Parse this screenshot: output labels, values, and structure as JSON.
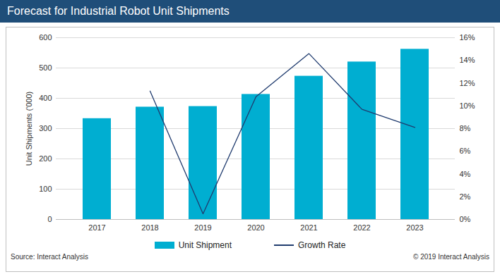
{
  "chart_data": {
    "type": "bar",
    "title": "Forecast for Industrial Robot Unit Shipments",
    "categories": [
      "2017",
      "2018",
      "2019",
      "2020",
      "2021",
      "2022",
      "2023"
    ],
    "series": [
      {
        "name": "Unit Shipment",
        "type": "bar",
        "color": "#00aed1",
        "values": [
          333,
          371,
          373,
          413,
          473,
          520,
          562
        ]
      },
      {
        "name": "Growth Rate",
        "type": "line",
        "color": "#1f3b6e",
        "axis": "y2",
        "values": [
          null,
          11.3,
          0.5,
          10.8,
          14.6,
          9.7,
          8.1
        ]
      }
    ],
    "ylabel": "Unit Shipments ('000)",
    "ylim": [
      0,
      600
    ],
    "yticks": [
      0,
      100,
      200,
      300,
      400,
      500,
      600
    ],
    "y2lim": [
      0,
      16
    ],
    "y2ticks": [
      {
        "value": 0,
        "label": "0%"
      },
      {
        "value": 2,
        "label": "2%"
      },
      {
        "value": 4,
        "label": "4%"
      },
      {
        "value": 6,
        "label": "6%"
      },
      {
        "value": 8,
        "label": "8%"
      },
      {
        "value": 10,
        "label": "10%"
      },
      {
        "value": 12,
        "label": "12%"
      },
      {
        "value": 14,
        "label": "14%"
      },
      {
        "value": 16,
        "label": "16%"
      }
    ],
    "grid": true,
    "legend": "bottom",
    "source": "Source: Interact Analysis",
    "copyright": "© 2019 Interact Analysis"
  }
}
